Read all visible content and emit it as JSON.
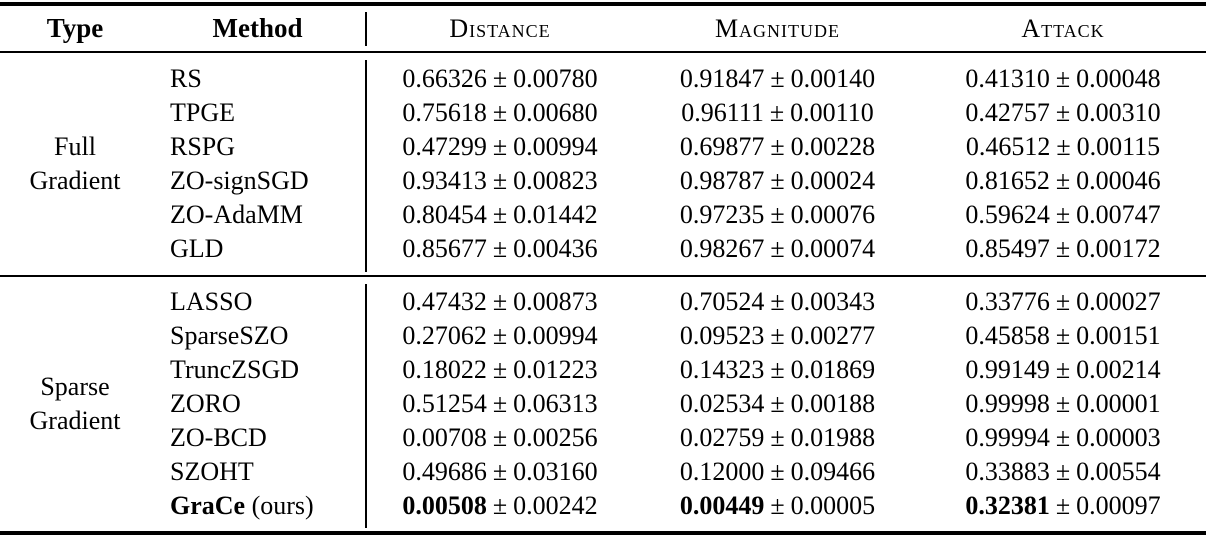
{
  "colors": {
    "text": "#000000",
    "background": "#ffffff",
    "rule": "#000000"
  },
  "table": {
    "pm": "±",
    "columns": {
      "type": "Type",
      "method": "Method",
      "distance": "Distance",
      "magnitude": "Magnitude",
      "attack": "Attack"
    },
    "groups": [
      {
        "type_label": "Full Gradient",
        "type_label_lines": [
          "Full",
          "Gradient"
        ],
        "rows": [
          {
            "method": "RS",
            "cells": [
              {
                "mean": "0.66326",
                "std": "0.00780"
              },
              {
                "mean": "0.91847",
                "std": "0.00140"
              },
              {
                "mean": "0.41310",
                "std": "0.00048"
              }
            ]
          },
          {
            "method": "TPGE",
            "cells": [
              {
                "mean": "0.75618",
                "std": "0.00680"
              },
              {
                "mean": "0.96111",
                "std": "0.00110"
              },
              {
                "mean": "0.42757",
                "std": "0.00310"
              }
            ]
          },
          {
            "method": "RSPG",
            "cells": [
              {
                "mean": "0.47299",
                "std": "0.00994"
              },
              {
                "mean": "0.69877",
                "std": "0.00228"
              },
              {
                "mean": "0.46512",
                "std": "0.00115"
              }
            ]
          },
          {
            "method": "ZO-signSGD",
            "cells": [
              {
                "mean": "0.93413",
                "std": "0.00823"
              },
              {
                "mean": "0.98787",
                "std": "0.00024"
              },
              {
                "mean": "0.81652",
                "std": "0.00046"
              }
            ]
          },
          {
            "method": "ZO-AdaMM",
            "cells": [
              {
                "mean": "0.80454",
                "std": "0.01442"
              },
              {
                "mean": "0.97235",
                "std": "0.00076"
              },
              {
                "mean": "0.59624",
                "std": "0.00747"
              }
            ]
          },
          {
            "method": "GLD",
            "cells": [
              {
                "mean": "0.85677",
                "std": "0.00436"
              },
              {
                "mean": "0.98267",
                "std": "0.00074"
              },
              {
                "mean": "0.85497",
                "std": "0.00172"
              }
            ]
          }
        ]
      },
      {
        "type_label": "Sparse Gradient",
        "type_label_lines": [
          "Sparse",
          "Gradient"
        ],
        "rows": [
          {
            "method": "LASSO",
            "cells": [
              {
                "mean": "0.47432",
                "std": "0.00873"
              },
              {
                "mean": "0.70524",
                "std": "0.00343"
              },
              {
                "mean": "0.33776",
                "std": "0.00027"
              }
            ]
          },
          {
            "method": "SparseSZO",
            "cells": [
              {
                "mean": "0.27062",
                "std": "0.00994"
              },
              {
                "mean": "0.09523",
                "std": "0.00277"
              },
              {
                "mean": "0.45858",
                "std": "0.00151"
              }
            ]
          },
          {
            "method": "TruncZSGD",
            "cells": [
              {
                "mean": "0.18022",
                "std": "0.01223"
              },
              {
                "mean": "0.14323",
                "std": "0.01869"
              },
              {
                "mean": "0.99149",
                "std": "0.00214"
              }
            ]
          },
          {
            "method": "ZORO",
            "cells": [
              {
                "mean": "0.51254",
                "std": "0.06313"
              },
              {
                "mean": "0.02534",
                "std": "0.00188"
              },
              {
                "mean": "0.99998",
                "std": "0.00001"
              }
            ]
          },
          {
            "method": "ZO-BCD",
            "cells": [
              {
                "mean": "0.00708",
                "std": "0.00256"
              },
              {
                "mean": "0.02759",
                "std": "0.01988"
              },
              {
                "mean": "0.99994",
                "std": "0.00003"
              }
            ]
          },
          {
            "method": "SZOHT",
            "cells": [
              {
                "mean": "0.49686",
                "std": "0.03160"
              },
              {
                "mean": "0.12000",
                "std": "0.09466"
              },
              {
                "mean": "0.33883",
                "std": "0.00554"
              }
            ]
          },
          {
            "method": "GraCe",
            "method_note": "(ours)",
            "highlight": true,
            "cells": [
              {
                "mean": "0.00508",
                "std": "0.00242"
              },
              {
                "mean": "0.00449",
                "std": "0.00005"
              },
              {
                "mean": "0.32381",
                "std": "0.00097"
              }
            ]
          }
        ]
      }
    ]
  }
}
